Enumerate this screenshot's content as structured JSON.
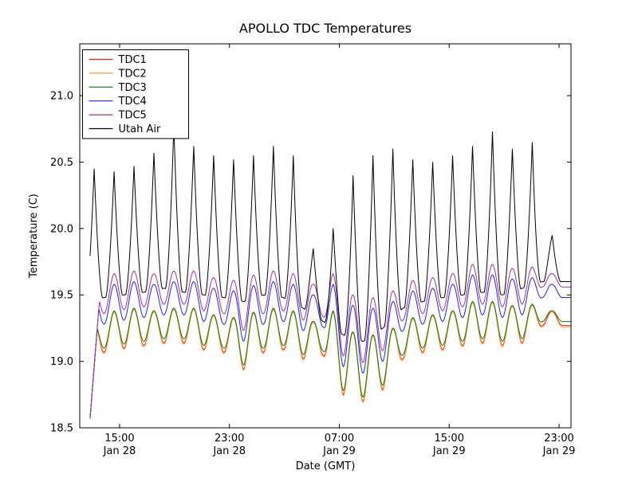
{
  "chart_data": {
    "type": "line",
    "title": "APOLLO TDC Temperatures",
    "xlabel": "Date (GMT)",
    "ylabel": "Temperature (C)",
    "x_unit": "hours_since_Jan28_12:00_GMT",
    "xlim": [
      0.1,
      35.87
    ],
    "ylim": [
      18.5,
      21.39
    ],
    "grid": false,
    "legend_position": "upper-left",
    "yticks": [
      18.5,
      19.0,
      19.5,
      20.0,
      20.5,
      21.0
    ],
    "xticks": [
      {
        "t": 3,
        "time": "15:00",
        "date": "Jan 28"
      },
      {
        "t": 11,
        "time": "23:00",
        "date": "Jan 28"
      },
      {
        "t": 19,
        "time": "07:00",
        "date": "Jan 29"
      },
      {
        "t": 27,
        "time": "15:00",
        "date": "Jan 29"
      },
      {
        "t": 35,
        "time": "23:00",
        "date": "Jan 29"
      }
    ],
    "cycle": {
      "first_peak_t": 1.15,
      "period_hours": 1.45,
      "count": 24
    },
    "draw_start_t": 0.85,
    "start_ramp": {
      "t0": 0.85,
      "v0": 18.57,
      "slope": 1.3
    },
    "series": [
      {
        "name": "TDC1",
        "color": "#dd2222",
        "shape": "smooth",
        "ramp": true,
        "peaks": [
          19.28,
          19.38,
          19.4,
          19.38,
          19.4,
          19.4,
          19.35,
          19.33,
          19.37,
          19.4,
          19.38,
          19.3,
          19.38,
          19.22,
          19.2,
          19.25,
          19.33,
          19.35,
          19.38,
          19.45,
          19.45,
          19.42,
          19.43,
          19.38
        ],
        "troughs": [
          19.02,
          19.07,
          19.1,
          19.12,
          19.14,
          19.14,
          19.09,
          19.07,
          18.94,
          19.07,
          19.09,
          19.02,
          19.05,
          18.75,
          18.7,
          18.79,
          19.02,
          19.07,
          19.09,
          19.12,
          19.14,
          19.12,
          19.14,
          19.27
        ]
      },
      {
        "name": "TDC2",
        "color": "#ff9933",
        "shape": "smooth",
        "ramp": true,
        "peaks": [
          19.27,
          19.37,
          19.39,
          19.37,
          19.39,
          19.39,
          19.34,
          19.32,
          19.36,
          19.39,
          19.37,
          19.29,
          19.37,
          19.21,
          19.19,
          19.24,
          19.32,
          19.34,
          19.37,
          19.44,
          19.44,
          19.41,
          19.42,
          19.37
        ],
        "troughs": [
          19.01,
          19.06,
          19.09,
          19.11,
          19.13,
          19.13,
          19.08,
          19.06,
          18.93,
          19.06,
          19.08,
          19.01,
          19.04,
          18.74,
          18.69,
          18.78,
          19.01,
          19.06,
          19.08,
          19.11,
          19.13,
          19.11,
          19.13,
          19.26
        ]
      },
      {
        "name": "TDC3",
        "color": "#117711",
        "shape": "smooth",
        "ramp": true,
        "peaks": [
          19.28,
          19.38,
          19.4,
          19.38,
          19.4,
          19.4,
          19.35,
          19.33,
          19.37,
          19.4,
          19.38,
          19.3,
          19.38,
          19.22,
          19.2,
          19.25,
          19.33,
          19.35,
          19.38,
          19.45,
          19.45,
          19.42,
          19.43,
          19.38
        ],
        "troughs": [
          19.05,
          19.1,
          19.13,
          19.15,
          19.17,
          19.17,
          19.12,
          19.1,
          18.97,
          19.1,
          19.12,
          19.05,
          19.08,
          18.78,
          18.73,
          18.82,
          19.05,
          19.1,
          19.12,
          19.15,
          19.17,
          19.15,
          19.17,
          19.3
        ]
      },
      {
        "name": "TDC4",
        "color": "#2222dd",
        "shape": "smooth",
        "ramp": true,
        "peaks": [
          19.48,
          19.58,
          19.6,
          19.58,
          19.6,
          19.6,
          19.55,
          19.53,
          19.57,
          19.6,
          19.58,
          19.5,
          19.58,
          19.42,
          19.4,
          19.45,
          19.53,
          19.55,
          19.58,
          19.65,
          19.65,
          19.62,
          19.63,
          19.58
        ],
        "troughs": [
          19.23,
          19.28,
          19.31,
          19.33,
          19.35,
          19.35,
          19.3,
          19.28,
          19.15,
          19.28,
          19.3,
          19.23,
          19.26,
          18.96,
          18.91,
          19.0,
          19.23,
          19.28,
          19.3,
          19.33,
          19.35,
          19.33,
          19.35,
          19.48
        ]
      },
      {
        "name": "TDC5",
        "color": "#993399",
        "shape": "smooth",
        "ramp": true,
        "peaks": [
          19.56,
          19.66,
          19.68,
          19.66,
          19.68,
          19.68,
          19.63,
          19.61,
          19.65,
          19.68,
          19.66,
          19.58,
          19.66,
          19.5,
          19.48,
          19.53,
          19.61,
          19.63,
          19.66,
          19.73,
          19.73,
          19.7,
          19.71,
          19.66
        ],
        "troughs": [
          19.31,
          19.36,
          19.39,
          19.41,
          19.43,
          19.43,
          19.38,
          19.36,
          19.23,
          19.36,
          19.38,
          19.31,
          19.34,
          19.04,
          18.99,
          19.08,
          19.31,
          19.36,
          19.38,
          19.41,
          19.43,
          19.41,
          19.43,
          19.56
        ]
      },
      {
        "name": "Utah Air",
        "color": "#000000",
        "shape": "spike",
        "ramp": false,
        "peaks": [
          20.45,
          20.43,
          20.47,
          20.57,
          20.78,
          20.62,
          20.55,
          20.52,
          20.55,
          20.62,
          20.55,
          19.85,
          20.0,
          20.4,
          20.55,
          20.6,
          20.52,
          20.5,
          20.55,
          20.62,
          20.73,
          20.6,
          20.65,
          19.95
        ],
        "troughs": [
          19.45,
          19.48,
          19.5,
          19.52,
          19.55,
          19.52,
          19.5,
          19.48,
          19.45,
          19.5,
          19.48,
          19.4,
          19.3,
          19.2,
          19.15,
          19.25,
          19.4,
          19.45,
          19.48,
          19.5,
          19.52,
          19.5,
          19.55,
          19.6
        ]
      }
    ]
  }
}
